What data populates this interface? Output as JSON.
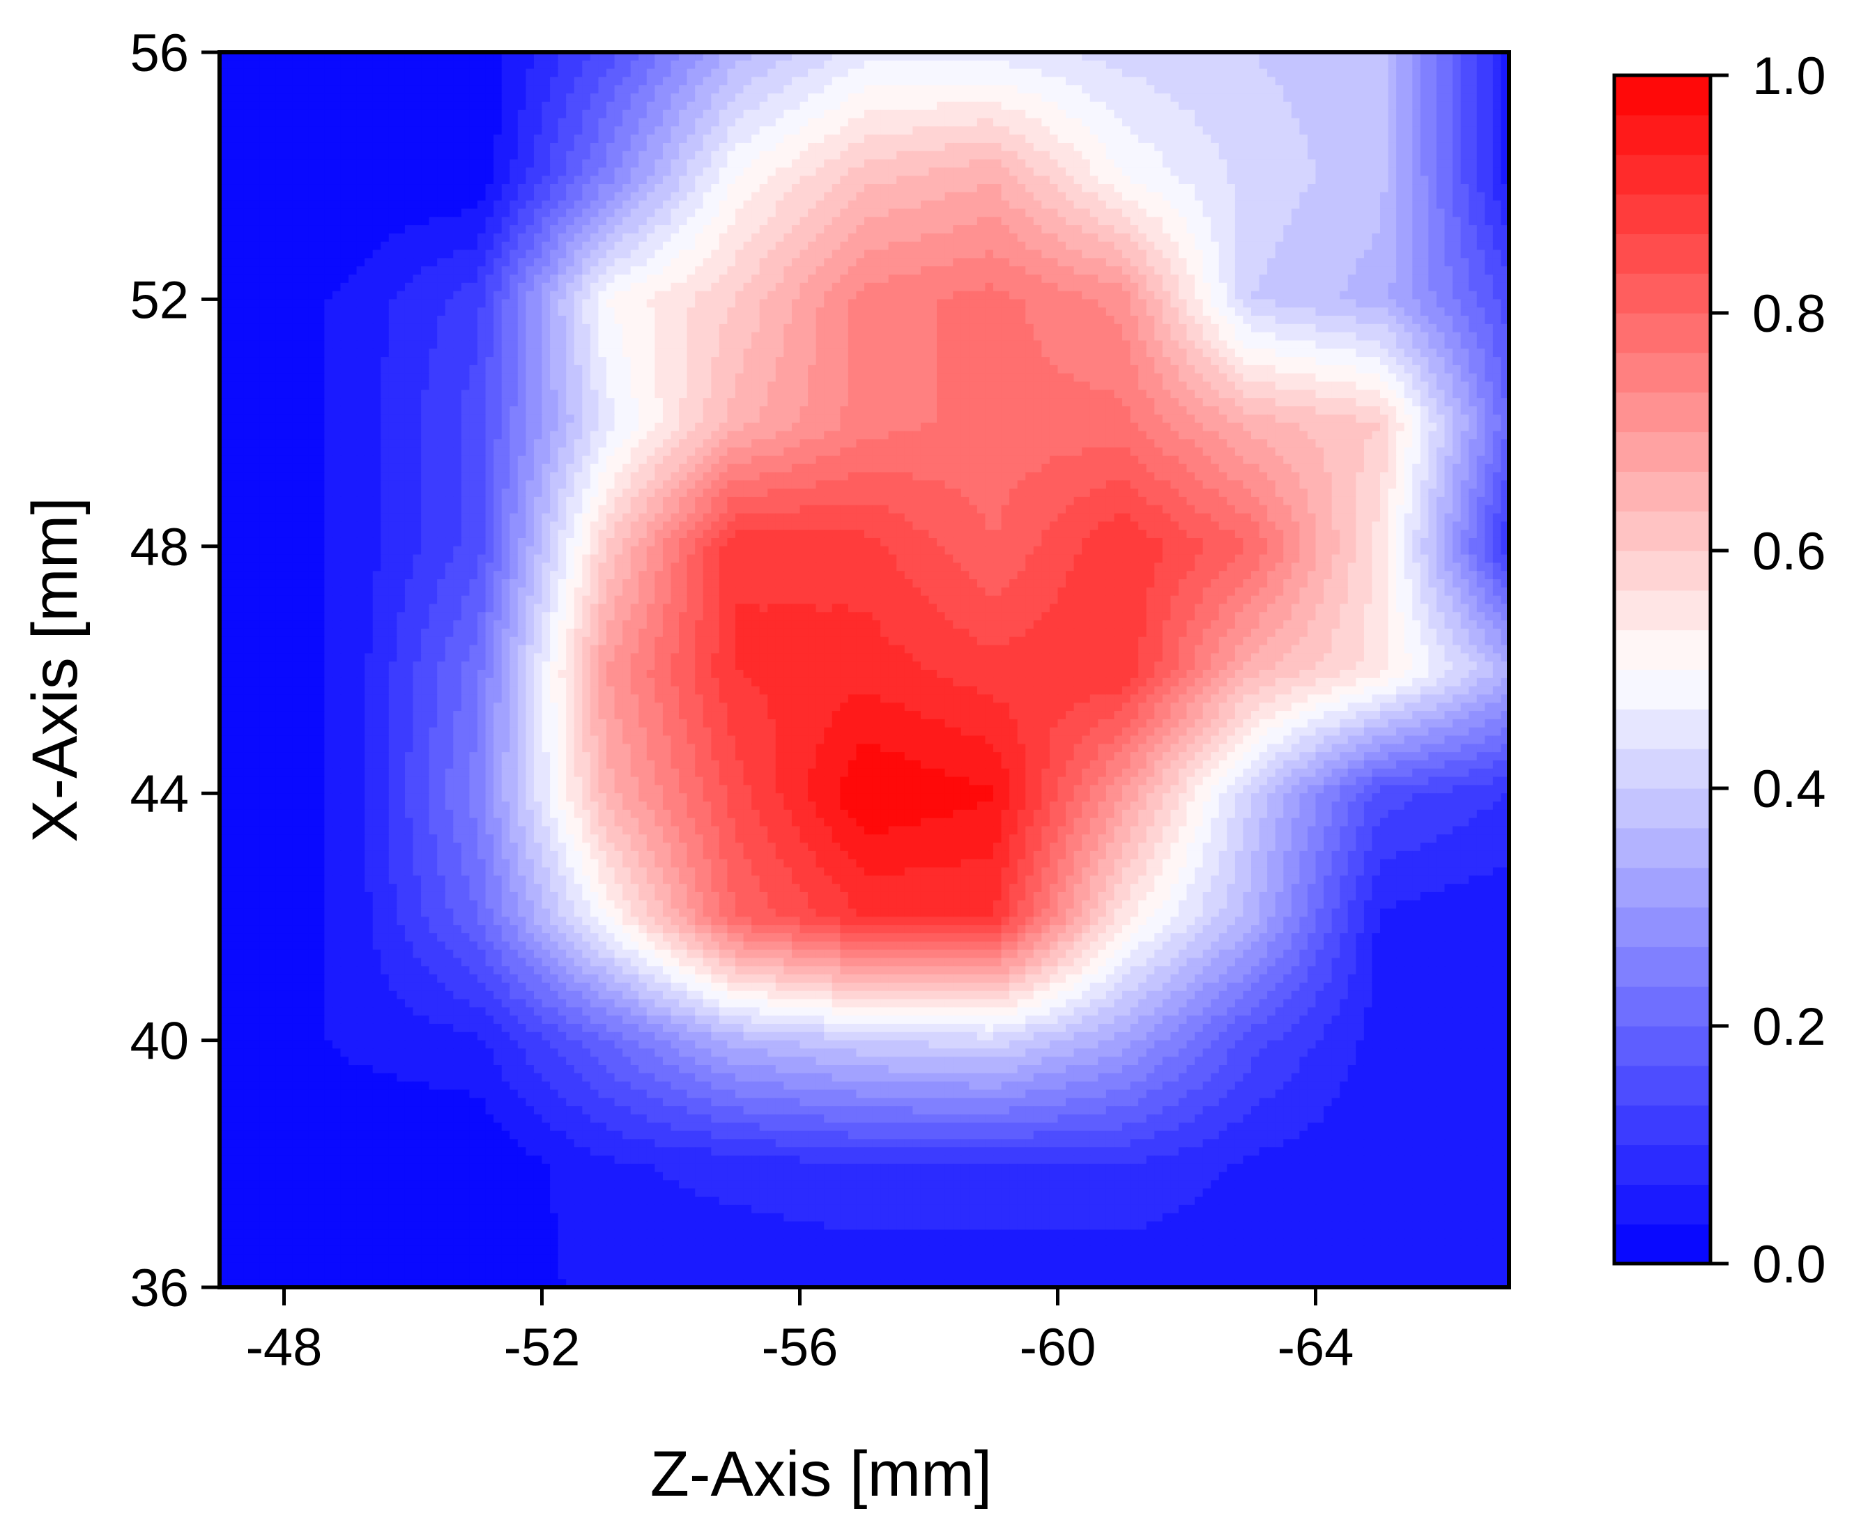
{
  "chart_data": {
    "type": "heatmap",
    "subtype": "filled-contour",
    "title": "",
    "xlabel": "Z-Axis [mm]",
    "ylabel": "X-Axis [mm]",
    "xlim": [
      -47,
      -67
    ],
    "ylim": [
      36,
      56
    ],
    "x_ticks": [
      -48,
      -52,
      -56,
      -60,
      -64
    ],
    "x_tick_labels": [
      "-48",
      "-52",
      "-56",
      "-60",
      "-64"
    ],
    "y_ticks": [
      36,
      40,
      44,
      48,
      52,
      56
    ],
    "y_tick_labels": [
      "36",
      "40",
      "44",
      "48",
      "52",
      "56"
    ],
    "x": [
      -47,
      -49,
      -51,
      -53,
      -55,
      -57,
      -59,
      -61,
      -63,
      -65,
      -67
    ],
    "y": [
      36,
      38,
      40,
      42,
      44,
      46,
      48,
      50,
      52,
      54,
      56
    ],
    "z": [
      [
        0.0,
        0.0,
        0.0,
        0.05,
        0.04,
        0.04,
        0.04,
        0.04,
        0.04,
        0.04,
        0.04
      ],
      [
        0.0,
        0.0,
        0.0,
        0.06,
        0.08,
        0.1,
        0.1,
        0.1,
        0.06,
        0.04,
        0.04
      ],
      [
        0.0,
        0.04,
        0.06,
        0.2,
        0.35,
        0.4,
        0.42,
        0.32,
        0.15,
        0.05,
        0.04
      ],
      [
        0.0,
        0.04,
        0.2,
        0.5,
        0.8,
        0.9,
        0.9,
        0.55,
        0.35,
        0.06,
        0.04
      ],
      [
        0.0,
        0.04,
        0.25,
        0.65,
        0.85,
        1.0,
        0.97,
        0.7,
        0.4,
        0.15,
        0.1
      ],
      [
        0.0,
        0.04,
        0.22,
        0.7,
        0.9,
        0.92,
        0.88,
        0.9,
        0.65,
        0.55,
        0.35
      ],
      [
        0.0,
        0.04,
        0.15,
        0.6,
        0.9,
        0.88,
        0.8,
        0.9,
        0.8,
        0.55,
        0.1
      ],
      [
        0.0,
        0.04,
        0.15,
        0.45,
        0.65,
        0.75,
        0.78,
        0.78,
        0.65,
        0.6,
        0.2
      ],
      [
        0.0,
        0.04,
        0.12,
        0.5,
        0.6,
        0.75,
        0.78,
        0.72,
        0.4,
        0.35,
        0.15
      ],
      [
        0.03,
        0.0,
        0.0,
        0.25,
        0.5,
        0.62,
        0.66,
        0.5,
        0.42,
        0.38,
        0.05
      ],
      [
        0.0,
        0.0,
        0.0,
        0.15,
        0.35,
        0.45,
        0.45,
        0.42,
        0.4,
        0.38,
        0.05
      ]
    ],
    "colorbar": {
      "min": 0.0,
      "max": 1.0,
      "levels": 30,
      "ticks": [
        0.0,
        0.2,
        0.4,
        0.6,
        0.8,
        1.0
      ],
      "tick_labels": [
        "0.0",
        "0.2",
        "0.4",
        "0.6",
        "0.8",
        "1.0"
      ],
      "colors": {
        "low": "#0000ff",
        "mid": "#ffffff",
        "high": "#ff0000"
      }
    },
    "grid": false,
    "legend": "colorbar-right"
  }
}
